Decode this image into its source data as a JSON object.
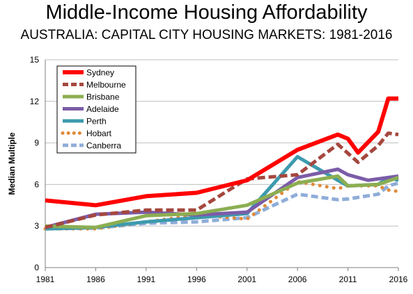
{
  "chart_data": {
    "type": "line",
    "title": "Middle-Income Housing Affordability",
    "subtitle": "AUSTRALIA: CAPITAL CITY HOUSING MARKETS: 1981-2016",
    "xlabel": "",
    "ylabel": "Median Multiple",
    "xlim": [
      1981,
      2016
    ],
    "ylim": [
      0,
      15
    ],
    "x_ticks": [
      1981,
      1986,
      1991,
      1996,
      2001,
      2006,
      2011,
      2016
    ],
    "y_ticks": [
      0,
      3,
      6,
      9,
      12,
      15
    ],
    "grid": "horizontal",
    "legend_position": "top-left",
    "series": [
      {
        "name": "Sydney",
        "color": "#ff0000",
        "style": "solid",
        "width": 6,
        "x": [
          1981,
          1986,
          1991,
          1996,
          2001,
          2006,
          2010,
          2011,
          2012,
          2014,
          2015,
          2016
        ],
        "y": [
          4.85,
          4.5,
          5.15,
          5.4,
          6.3,
          8.5,
          9.6,
          9.3,
          8.3,
          9.8,
          12.2,
          12.2
        ]
      },
      {
        "name": "Melbourne",
        "color": "#a5473e",
        "style": "dashed",
        "width": 5,
        "x": [
          1981,
          1986,
          1991,
          1996,
          2001,
          2006,
          2010,
          2012,
          2014,
          2015,
          2016
        ],
        "y": [
          2.9,
          3.8,
          4.15,
          4.15,
          6.4,
          6.7,
          8.9,
          7.6,
          8.8,
          9.7,
          9.6
        ]
      },
      {
        "name": "Brisbane",
        "color": "#8cae52",
        "style": "solid",
        "width": 5,
        "x": [
          1981,
          1986,
          1991,
          1996,
          2001,
          2006,
          2010,
          2011,
          2014,
          2016
        ],
        "y": [
          3.0,
          2.9,
          3.75,
          3.9,
          4.5,
          6.1,
          6.6,
          5.9,
          6.0,
          6.5
        ]
      },
      {
        "name": "Adelaide",
        "color": "#7b5ca8",
        "style": "solid",
        "width": 5,
        "x": [
          1981,
          1986,
          1991,
          1996,
          2001,
          2006,
          2010,
          2011,
          2013,
          2016
        ],
        "y": [
          2.9,
          3.85,
          4.0,
          3.8,
          4.0,
          6.5,
          7.1,
          6.7,
          6.3,
          6.6
        ]
      },
      {
        "name": "Perth",
        "color": "#3d9aad",
        "style": "solid",
        "width": 5,
        "x": [
          1981,
          1986,
          1991,
          1996,
          2001,
          2006,
          2010,
          2011,
          2014,
          2015,
          2016
        ],
        "y": [
          2.8,
          2.9,
          3.3,
          3.6,
          3.9,
          8.0,
          6.3,
          5.9,
          6.0,
          6.5,
          6.3
        ]
      },
      {
        "name": "Hobart",
        "color": "#e08a3a",
        "style": "dotted",
        "width": 5,
        "x": [
          1981,
          1986,
          1991,
          1996,
          2001,
          2006,
          2010,
          2011,
          2014,
          2015,
          2016
        ],
        "y": [
          2.8,
          2.8,
          3.3,
          3.8,
          3.5,
          6.2,
          5.7,
          5.9,
          5.9,
          5.6,
          5.5
        ]
      },
      {
        "name": "Canberra",
        "color": "#8fadd8",
        "style": "dashed",
        "width": 5,
        "x": [
          1981,
          1986,
          1991,
          1996,
          2001,
          2006,
          2010,
          2011,
          2014,
          2015,
          2016
        ],
        "y": [
          2.8,
          2.85,
          3.2,
          3.3,
          3.6,
          5.3,
          4.9,
          4.95,
          5.3,
          5.9,
          6.1
        ]
      }
    ]
  }
}
